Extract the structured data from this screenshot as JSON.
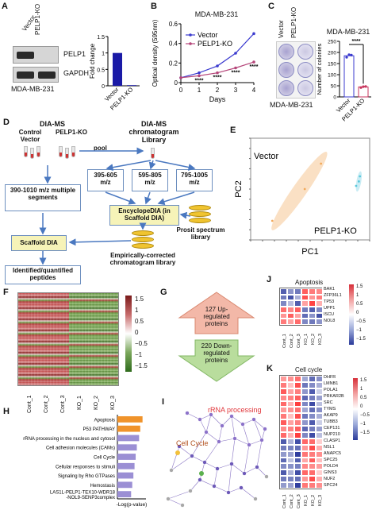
{
  "panel_labels": {
    "A": "A",
    "B": "B",
    "C": "C",
    "D": "D",
    "E": "E",
    "F": "F",
    "G": "G",
    "H": "H",
    "I": "I",
    "J": "J",
    "K": "K"
  },
  "panel_a": {
    "lane_labels": [
      "Vector",
      "PELP1-KO"
    ],
    "bands": [
      "PELP1",
      "GAPDH"
    ],
    "cell_line": "MDA-MB-231"
  },
  "panel_b": {
    "cell_line": "MDA-MB-231",
    "sig": "****"
  },
  "panel_c": {
    "lane_labels": [
      "Vector",
      "PELP1-KO"
    ],
    "cell_line": "MDA-MB-231",
    "sig": "****"
  },
  "panel_d": {
    "title_left": "DIA-MS",
    "group1": "Control Vector",
    "group2": "PELP1-KO",
    "pool": "pool",
    "title_right": "DIA-MS chromatogram Library",
    "mz1": "395-605 m/z",
    "mz2": "595-805 m/z",
    "mz3": "795-1005 m/z",
    "segments": "390-1010 m/z multiple segments",
    "encyclo": "EncyclopeDIA (in Scaffold DIA)",
    "prosit": "Prosit spectrum library",
    "scaffold": "Scaffold DIA",
    "empirical": "Empirically-corrected chromatogram library",
    "identified": "Identified/quantified peptides"
  },
  "panel_e": {
    "xlabel": "PC1",
    "ylabel": "PC2",
    "group1": "Vector",
    "group2": "PELP1-KO"
  },
  "panel_f": {
    "scale": [
      "1.5",
      "1",
      "0.5",
      "0",
      "−0.5",
      "−1",
      "−1.5"
    ],
    "columns": [
      "Cont_1",
      "Cont_2",
      "Cont_3",
      "KO_1",
      "KO_2",
      "KO_3"
    ]
  },
  "panel_g": {
    "up": "127 Up-regulated proteins",
    "down": "220 Down-regulated proteins"
  },
  "panel_h": {
    "pathways": [
      "Apoptosis",
      "P53 PATHWAY",
      "rRNA processing in the nucleus and cytosol",
      "Cell adhesion molecules (CAMs)",
      "Cell Cycle",
      "Cellular responses to stimuli",
      "Signaling by Rho GTPases",
      "Hemostasis",
      "LAS1L-PELP1-TEX10-WDR18 -NOL9-SENP3complex"
    ],
    "scores": [
      2.2,
      2.0,
      1.9,
      1.7,
      1.6,
      1.5,
      1.4,
      1.3,
      1.2
    ],
    "colors": [
      "#f0932b",
      "#f0932b",
      "#9b8fd4",
      "#9b8fd4",
      "#9b8fd4",
      "#9b8fd4",
      "#9b8fd4",
      "#9b8fd4",
      "#9b8fd4"
    ],
    "xlabel": "-Log(p-value)"
  },
  "panel_i": {
    "label1": "rRNA processing",
    "label2": "Cell Cycle"
  },
  "panel_j": {
    "title": "Apoptosis",
    "genes": [
      "BAK1",
      "ZFP36L1",
      "TP53",
      "UPP1",
      "ISCU",
      "NOL8"
    ],
    "scale": [
      "1.5",
      "1",
      "0.5",
      "0",
      "−0.5",
      "−1",
      "−1.5"
    ],
    "columns": [
      "Cont_1",
      "Cont_2",
      "Cont_3",
      "KO_1",
      "KO_2",
      "KO_3"
    ]
  },
  "panel_k": {
    "title": "Cell cycle",
    "genes": [
      "DHFR",
      "LMNB1",
      "POLA1",
      "PRKAR2B",
      "SRC",
      "TYMS",
      "AKAP9",
      "TUBB3",
      "CEP131",
      "NUP210",
      "CLASP1",
      "NSL1",
      "ANAPC5",
      "SPC25",
      "POLD4",
      "GINS3",
      "NUF2",
      "SPC24"
    ],
    "scale": [
      "1.5",
      "1",
      "0.5",
      "0",
      "−0.5",
      "−1",
      "−1.5"
    ],
    "columns": [
      "Cont_1",
      "Cont_2",
      "Cont_3",
      "KO_1",
      "KO_2",
      "KO_3"
    ]
  },
  "chart_data": [
    {
      "type": "bar",
      "panel": "A",
      "categories": [
        "Vector",
        "PELP1-KO"
      ],
      "values": [
        1.0,
        0.02
      ],
      "ylabel": "Fold change",
      "ylim": [
        0,
        1.5
      ],
      "yticks": [
        "0",
        "0.5",
        "1",
        "1.5"
      ],
      "color": "#1a1aa6"
    },
    {
      "type": "line",
      "panel": "B",
      "x": [
        0,
        1,
        2,
        3,
        4
      ],
      "xticks": [
        "0",
        "1",
        "2",
        "3",
        "4"
      ],
      "series": [
        {
          "name": "Vector",
          "values": [
            0.05,
            0.1,
            0.17,
            0.3,
            0.5
          ],
          "color": "#3b3bcf"
        },
        {
          "name": "PELP1-KO",
          "values": [
            0.05,
            0.07,
            0.1,
            0.15,
            0.21
          ],
          "color": "#b5467a"
        }
      ],
      "xlabel": "Days",
      "ylabel": "Optical density (595nm)",
      "ylim": [
        0,
        0.6
      ],
      "yticks": [
        "0",
        "0.2",
        "0.4",
        "0.6"
      ]
    },
    {
      "type": "bar",
      "panel": "C",
      "categories": [
        "Vector",
        "PELP1-KO"
      ],
      "values": [
        185,
        45
      ],
      "ylabel": "Number of colonies",
      "ylim": [
        0,
        250
      ],
      "yticks": [
        "0",
        "50",
        "100",
        "150",
        "200",
        "250"
      ],
      "points": [
        [
          178,
          190,
          188
        ],
        [
          42,
          46,
          47
        ]
      ],
      "colors": [
        "#3b3bcf",
        "#c8365d"
      ]
    },
    {
      "type": "scatter",
      "panel": "E",
      "series": [
        {
          "name": "Vector",
          "x": [
            -6,
            0,
            3
          ],
          "y": [
            -5,
            0,
            4
          ],
          "color": "#f2a95a"
        },
        {
          "name": "PELP1-KO",
          "x": [
            9.5,
            10,
            10.2
          ],
          "y": [
            0.5,
            1.2,
            2.0
          ],
          "color": "#5bc8dc"
        }
      ],
      "xlabel": "PC1",
      "ylabel": "PC2"
    },
    {
      "type": "bar",
      "panel": "H",
      "categories": [
        "Apoptosis",
        "P53 PATHWAY",
        "rRNA processing in the nucleus and cytosol",
        "Cell adhesion molecules (CAMs)",
        "Cell Cycle",
        "Cellular responses to stimuli",
        "Signaling by Rho GTPases",
        "Hemostasis",
        "LAS1L-PELP1-TEX10-WDR18 -NOL9-SENP3complex"
      ],
      "values": [
        2.2,
        2.0,
        1.9,
        1.7,
        1.6,
        1.5,
        1.4,
        1.3,
        1.2
      ],
      "xlabel": "-Log(p-value)"
    }
  ]
}
